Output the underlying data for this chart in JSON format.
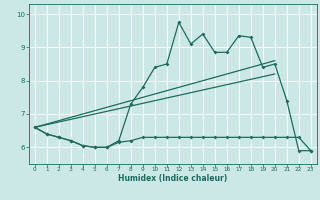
{
  "title": "",
  "xlabel": "Humidex (Indice chaleur)",
  "background_color": "#cce8e6",
  "line_color": "#1e6b5e",
  "grid_color": "#ffffff",
  "xlim": [
    -0.5,
    23.5
  ],
  "ylim": [
    5.5,
    10.3
  ],
  "xticks": [
    0,
    1,
    2,
    3,
    4,
    5,
    6,
    7,
    8,
    9,
    10,
    11,
    12,
    13,
    14,
    15,
    16,
    17,
    18,
    19,
    20,
    21,
    22,
    23
  ],
  "yticks": [
    6,
    7,
    8,
    9,
    10
  ],
  "series1_x": [
    0,
    1,
    2,
    3,
    4,
    5,
    6,
    7,
    8,
    9,
    10,
    11,
    12,
    13,
    14,
    15,
    16,
    17,
    18,
    19,
    20,
    21,
    22,
    23
  ],
  "series1_y": [
    6.6,
    6.4,
    6.3,
    6.2,
    6.05,
    6.0,
    6.0,
    6.2,
    7.3,
    7.8,
    8.4,
    8.5,
    9.75,
    9.1,
    9.4,
    8.85,
    8.85,
    9.35,
    9.3,
    8.4,
    8.5,
    7.4,
    5.9,
    5.9
  ],
  "series2_x": [
    0,
    1,
    2,
    3,
    4,
    5,
    6,
    7,
    8,
    9,
    10,
    11,
    12,
    13,
    14,
    15,
    16,
    17,
    18,
    19,
    20,
    21,
    22,
    23
  ],
  "series2_y": [
    6.6,
    6.4,
    6.3,
    6.2,
    6.05,
    6.0,
    6.0,
    6.15,
    6.2,
    6.3,
    6.3,
    6.3,
    6.3,
    6.3,
    6.3,
    6.3,
    6.3,
    6.3,
    6.3,
    6.3,
    6.3,
    6.3,
    6.3,
    5.9
  ],
  "trend1_x": [
    0,
    20
  ],
  "trend1_y": [
    6.6,
    8.6
  ],
  "trend2_x": [
    0,
    20
  ],
  "trend2_y": [
    6.6,
    8.2
  ]
}
